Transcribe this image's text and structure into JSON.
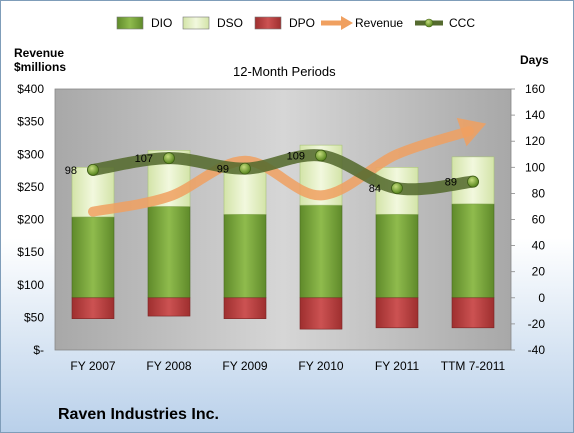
{
  "chart_data": {
    "type": "bar",
    "title": "12-Month Periods",
    "company": "Raven Industries Inc.",
    "categories": [
      "FY 2007",
      "FY 2008",
      "FY 2009",
      "FY 2010",
      "FY 2011",
      "TTM 7-2011"
    ],
    "left_axis": {
      "label_line1": "Revenue",
      "label_line2": "$millions",
      "ylim": [
        0,
        400
      ],
      "ticks": [
        "$-",
        "$50",
        "$100",
        "$150",
        "$200",
        "$250",
        "$300",
        "$350",
        "$400"
      ]
    },
    "right_axis": {
      "label": "Days",
      "ylim": [
        -40,
        160
      ],
      "ticks": [
        "-40",
        "-20",
        "0",
        "20",
        "40",
        "60",
        "80",
        "100",
        "120",
        "140",
        "160"
      ]
    },
    "series": [
      {
        "name": "DIO",
        "axis": "right",
        "kind": "stacked-bar",
        "color": "#77a33a",
        "values": [
          62,
          70,
          64,
          71,
          64,
          72
        ]
      },
      {
        "name": "DSO",
        "axis": "right",
        "kind": "stacked-bar",
        "color": "#e4f0c4",
        "values": [
          38,
          43,
          37,
          46,
          36,
          36
        ]
      },
      {
        "name": "DPO",
        "axis": "right",
        "kind": "negative-bar",
        "color": "#b83b3b",
        "values": [
          -16,
          -14,
          -16,
          -24,
          -23,
          -23
        ]
      },
      {
        "name": "Revenue",
        "axis": "left",
        "kind": "arrow-line",
        "color": "#f0a060",
        "values": [
          212,
          235,
          290,
          237,
          300,
          340
        ]
      },
      {
        "name": "CCC",
        "axis": "right",
        "kind": "line",
        "color": "#556b2f",
        "values": [
          98,
          107,
          99,
          109,
          84,
          89
        ],
        "labels": [
          "98",
          "107",
          "99",
          "109",
          "84",
          "89"
        ]
      }
    ],
    "legend": {
      "position": "top",
      "items": [
        "DIO",
        "DSO",
        "DPO",
        "Revenue",
        "CCC"
      ]
    },
    "plot_background": "#c0c0c0",
    "grid": false
  }
}
